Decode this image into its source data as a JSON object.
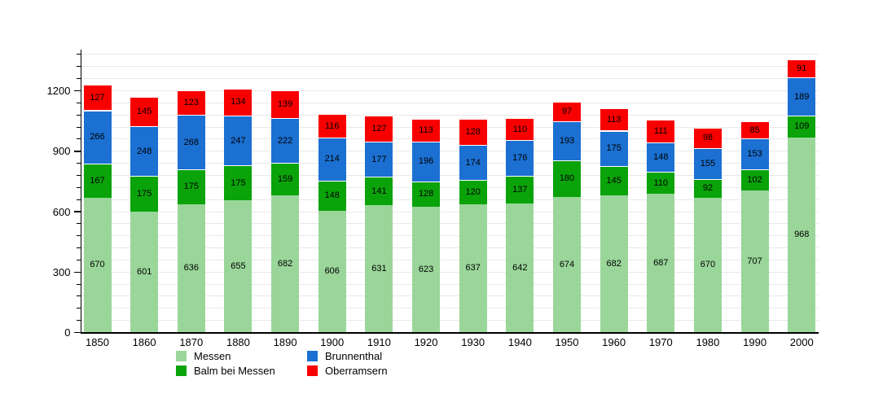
{
  "chart_data": {
    "type": "bar",
    "stacked": true,
    "title": "",
    "xlabel": "",
    "ylabel": "",
    "categories": [
      "1850",
      "1860",
      "1870",
      "1880",
      "1890",
      "1900",
      "1910",
      "1920",
      "1930",
      "1940",
      "1950",
      "1960",
      "1970",
      "1980",
      "1990",
      "2000"
    ],
    "series": [
      {
        "name": "Messen",
        "color": "#9ad69a",
        "values": [
          670,
          601,
          636,
          655,
          682,
          606,
          631,
          623,
          637,
          642,
          674,
          682,
          687,
          670,
          707,
          968
        ]
      },
      {
        "name": "Balm bei Messen",
        "color": "#0aa30a",
        "values": [
          167,
          175,
          175,
          175,
          159,
          148,
          141,
          128,
          120,
          137,
          180,
          145,
          110,
          92,
          102,
          109
        ]
      },
      {
        "name": "Brunnenthal",
        "color": "#1b70d2",
        "values": [
          266,
          248,
          268,
          247,
          222,
          214,
          177,
          196,
          174,
          176,
          193,
          175,
          148,
          155,
          153,
          189
        ]
      },
      {
        "name": "Oberramsern",
        "color": "#f80000",
        "values": [
          127,
          145,
          123,
          134,
          139,
          116,
          127,
          113,
          128,
          110,
          97,
          113,
          111,
          98,
          85,
          91
        ]
      }
    ],
    "ylim": [
      0,
      1400
    ],
    "y_major_ticks": [
      0,
      300,
      600,
      900,
      1200
    ],
    "y_minor_step": 60,
    "y_max_tick": 1380,
    "grid": "horizontal-minor",
    "gridline_color": "#e8e8e8",
    "axis_color": "#000000",
    "bar_value_labels": true,
    "legend_position": "bottom",
    "legend_columns": [
      [
        "Messen",
        "Balm bei Messen"
      ],
      [
        "Brunnenthal",
        "Oberramsern"
      ]
    ]
  }
}
